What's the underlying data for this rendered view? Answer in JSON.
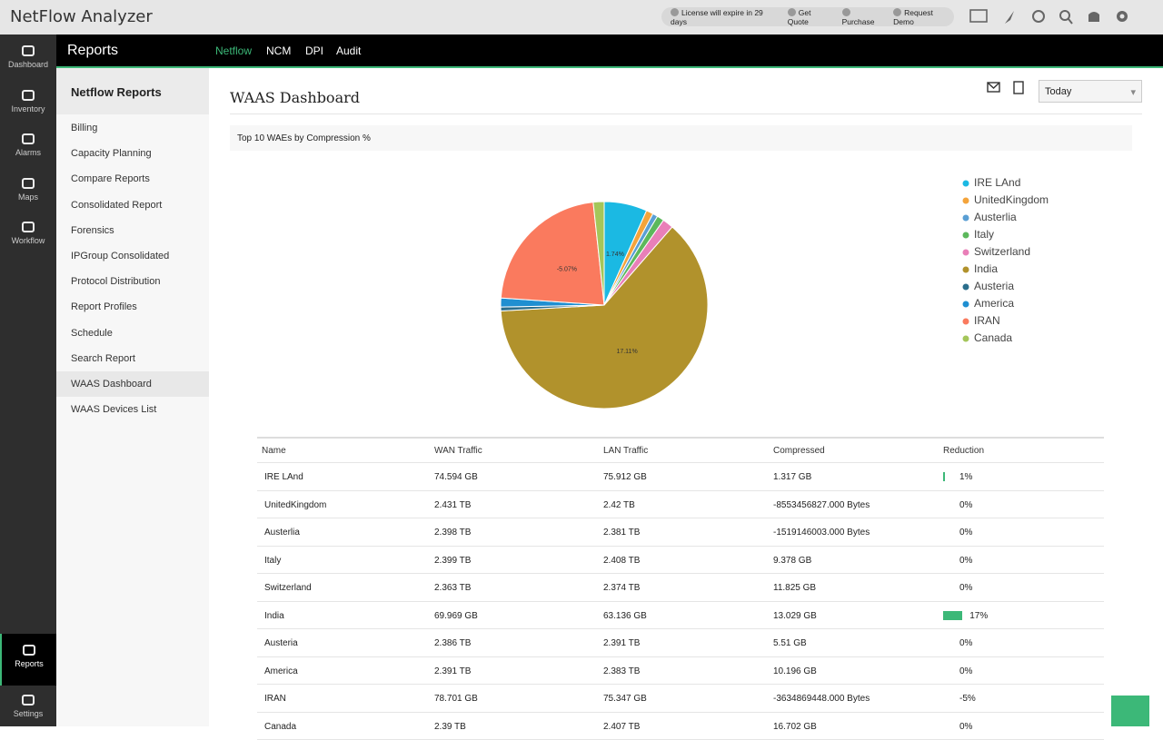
{
  "app": {
    "title": "NetFlow Analyzer",
    "links": [
      "License will expire in 29 days",
      "Get Quote",
      "Purchase",
      "Request Demo"
    ]
  },
  "sidebar": {
    "top": [
      "Dashboard",
      "Inventory",
      "Alarms",
      "Maps",
      "Workflow"
    ],
    "bottom": [
      "Reports",
      "Settings"
    ]
  },
  "nav": {
    "section": "Reports",
    "tabs": [
      "Netflow",
      "NCM",
      "DPI",
      "Audit"
    ]
  },
  "reports_menu": {
    "title": "Netflow Reports",
    "items": [
      "Billing",
      "Capacity Planning",
      "Compare Reports",
      "Consolidated Report",
      "Forensics",
      "IPGroup Consolidated",
      "Protocol Distribution",
      "Report Profiles",
      "Schedule",
      "Search Report",
      "WAAS Dashboard",
      "WAAS Devices List"
    ]
  },
  "page": {
    "title": "WAAS Dashboard",
    "range": "Today"
  },
  "chart_data": {
    "type": "pie",
    "title": "Top 10 WAEs by Compression %",
    "categories": [
      "IRE LAnd",
      "UnitedKingdom",
      "Austerlia",
      "Italy",
      "Switzerland",
      "India",
      "Austeria",
      "America",
      "IRAN",
      "Canada"
    ],
    "values": [
      6.7,
      1.1,
      0.8,
      1.1,
      1.7,
      62.7,
      0.6,
      1.4,
      22.2,
      1.7
    ],
    "colors": [
      "#1bb9e3",
      "#f4a43b",
      "#5a9fd4",
      "#5cb85c",
      "#e97fb8",
      "#b1922c",
      "#2b6e8c",
      "#1f8fd1",
      "#fa7a5e",
      "#a4c65a"
    ],
    "slice_labels": [
      "1.74%",
      null,
      null,
      null,
      null,
      "17.11%",
      null,
      null,
      "-5.07%",
      null
    ]
  },
  "table": {
    "columns": [
      "Name",
      "WAN Traffic",
      "LAN Traffic",
      "Compressed",
      "Reduction"
    ],
    "rows": [
      [
        "IRE LAnd",
        "74.594 GB",
        "75.912 GB",
        "1.317 GB",
        "1%"
      ],
      [
        "UnitedKingdom",
        "2.431 TB",
        "2.42 TB",
        "-8553456827.000 Bytes",
        "0%"
      ],
      [
        "Austerlia",
        "2.398 TB",
        "2.381 TB",
        "-1519146003.000 Bytes",
        "0%"
      ],
      [
        "Italy",
        "2.399 TB",
        "2.408 TB",
        "9.378 GB",
        "0%"
      ],
      [
        "Switzerland",
        "2.363 TB",
        "2.374 TB",
        "11.825 GB",
        "0%"
      ],
      [
        "India",
        "69.969 GB",
        "63.136 GB",
        "13.029 GB",
        "17%"
      ],
      [
        "Austeria",
        "2.386 TB",
        "2.391 TB",
        "5.51 GB",
        "0%"
      ],
      [
        "America",
        "2.391 TB",
        "2.383 TB",
        "10.196 GB",
        "0%"
      ],
      [
        "IRAN",
        "78.701 GB",
        "75.347 GB",
        "-3634869448.000 Bytes",
        "-5%"
      ],
      [
        "Canada",
        "2.39 TB",
        "2.407 TB",
        "16.702 GB",
        "0%"
      ]
    ]
  }
}
